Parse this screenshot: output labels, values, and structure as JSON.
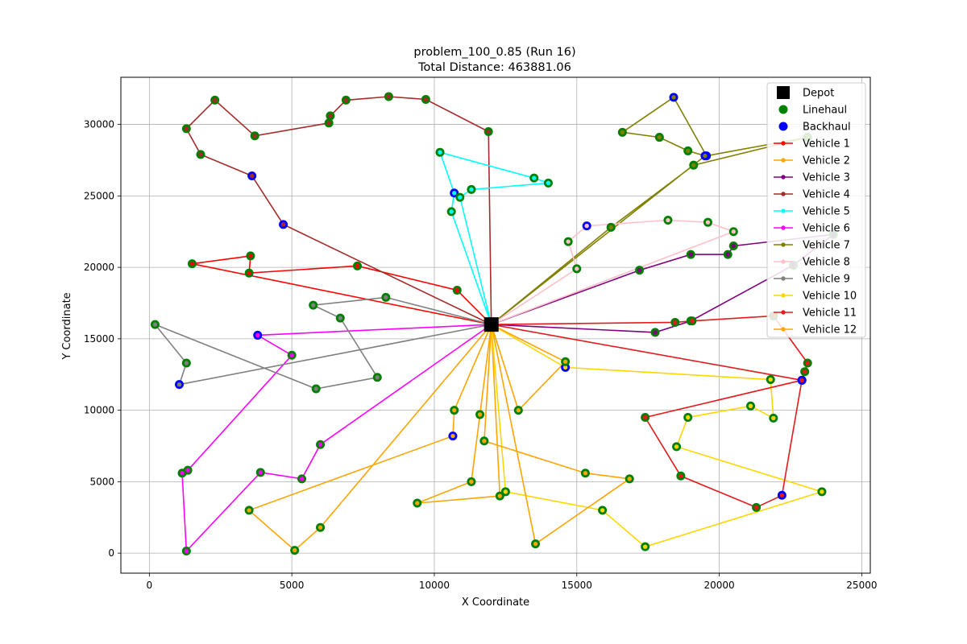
{
  "chart_data": {
    "type": "scatter",
    "title_line1": "problem_100_0.85 (Run 16)",
    "title_line2": "Total Distance: 463881.06",
    "xlabel": "X Coordinate",
    "ylabel": "Y Coordinate",
    "xlim": [
      -1000,
      25300
    ],
    "ylim": [
      -1400,
      33300
    ],
    "xticks": [
      0,
      5000,
      10000,
      15000,
      20000,
      25000
    ],
    "yticks": [
      0,
      5000,
      10000,
      15000,
      20000,
      25000,
      30000
    ],
    "grid": true,
    "legend_placement": "top-right",
    "depot": {
      "label": "Depot",
      "x": 12000,
      "y": 16000,
      "color": "#000000"
    },
    "linehaul_label": "Linehaul",
    "backhaul_label": "Backhaul",
    "linehaul_color": "#008000",
    "backhaul_color": "#0000ff",
    "series": [
      {
        "name": "Vehicle 1",
        "color": "#ff0000",
        "points": [
          [
            12000,
            16000
          ],
          [
            10800,
            18400
          ],
          [
            7300,
            20100
          ],
          [
            3500,
            19600
          ],
          [
            3550,
            20800
          ],
          [
            1500,
            20250
          ],
          [
            12000,
            16000
          ]
        ],
        "types": [
          "D",
          "L",
          "L",
          "L",
          "L",
          "L",
          "D"
        ]
      },
      {
        "name": "Vehicle 2",
        "color": "#ffa500",
        "points": [
          [
            12000,
            16000
          ],
          [
            11600,
            9700
          ],
          [
            11300,
            5000
          ],
          [
            9400,
            3500
          ],
          [
            12300,
            4000
          ],
          [
            12000,
            16000
          ]
        ],
        "types": [
          "D",
          "L",
          "L",
          "L",
          "L",
          "D"
        ]
      },
      {
        "name": "Vehicle 3",
        "color": "#800080",
        "points": [
          [
            12000,
            16000
          ],
          [
            17750,
            15450
          ],
          [
            19000,
            16250
          ],
          [
            22600,
            20150
          ],
          [
            24000,
            22300
          ],
          [
            20500,
            21500
          ],
          [
            20300,
            20900
          ],
          [
            19000,
            20900
          ],
          [
            17200,
            19800
          ],
          [
            12000,
            16000
          ]
        ],
        "types": [
          "D",
          "L",
          "L",
          "L",
          "L",
          "L",
          "L",
          "L",
          "L",
          "D"
        ]
      },
      {
        "name": "Vehicle 4",
        "color": "#a52a2a",
        "points": [
          [
            12000,
            16000
          ],
          [
            4700,
            23000
          ],
          [
            3600,
            26400
          ],
          [
            1800,
            27900
          ],
          [
            1300,
            29700
          ],
          [
            2300,
            31700
          ],
          [
            3700,
            29200
          ],
          [
            6300,
            30100
          ],
          [
            6350,
            30600
          ],
          [
            6900,
            31700
          ],
          [
            8400,
            31950
          ],
          [
            9700,
            31750
          ],
          [
            11900,
            29500
          ],
          [
            12000,
            16000
          ]
        ],
        "types": [
          "D",
          "B",
          "B",
          "L",
          "L",
          "L",
          "L",
          "L",
          "L",
          "L",
          "L",
          "L",
          "L",
          "D"
        ]
      },
      {
        "name": "Vehicle 5",
        "color": "#00ffff",
        "points": [
          [
            12000,
            16000
          ],
          [
            10600,
            23900
          ],
          [
            10700,
            25200
          ],
          [
            10200,
            28050
          ],
          [
            13500,
            26250
          ],
          [
            14000,
            25900
          ],
          [
            11300,
            25450
          ],
          [
            10900,
            24900
          ],
          [
            12000,
            16000
          ]
        ],
        "types": [
          "D",
          "L",
          "B",
          "L",
          "L",
          "L",
          "L",
          "L",
          "D"
        ]
      },
      {
        "name": "Vehicle 6",
        "color": "#ff00ff",
        "points": [
          [
            12000,
            16000
          ],
          [
            3800,
            15250
          ],
          [
            5000,
            13850
          ],
          [
            1350,
            5800
          ],
          [
            1150,
            5600
          ],
          [
            1300,
            150
          ],
          [
            3900,
            5650
          ],
          [
            5350,
            5200
          ],
          [
            6000,
            7600
          ],
          [
            12000,
            16000
          ]
        ],
        "types": [
          "D",
          "B",
          "L",
          "L",
          "L",
          "L",
          "L",
          "L",
          "L",
          "D"
        ]
      },
      {
        "name": "Vehicle 7",
        "color": "#808000",
        "points": [
          [
            12000,
            16000
          ],
          [
            16200,
            22800
          ],
          [
            19100,
            27150
          ],
          [
            23100,
            29100
          ],
          [
            19550,
            27800
          ],
          [
            18400,
            31900
          ],
          [
            16600,
            29450
          ],
          [
            17900,
            29100
          ],
          [
            18900,
            28150
          ],
          [
            19500,
            27800
          ],
          [
            12000,
            16000
          ]
        ],
        "types": [
          "D",
          "L",
          "L",
          "L",
          "B",
          "B",
          "L",
          "L",
          "L",
          "B",
          "D"
        ]
      },
      {
        "name": "Vehicle 8",
        "color": "#ffc0cb",
        "points": [
          [
            12000,
            16000
          ],
          [
            15000,
            19900
          ],
          [
            14700,
            21800
          ],
          [
            15350,
            22900
          ],
          [
            18200,
            23300
          ],
          [
            19600,
            23150
          ],
          [
            20500,
            22500
          ],
          [
            12000,
            16000
          ]
        ],
        "types": [
          "D",
          "L",
          "L",
          "B",
          "L",
          "L",
          "L",
          "D"
        ]
      },
      {
        "name": "Vehicle 9",
        "color": "#808080",
        "points": [
          [
            12000,
            16000
          ],
          [
            8300,
            17900
          ],
          [
            5750,
            17350
          ],
          [
            6700,
            16450
          ],
          [
            8000,
            12300
          ],
          [
            5850,
            11500
          ],
          [
            200,
            16000
          ],
          [
            1300,
            13300
          ],
          [
            1050,
            11800
          ],
          [
            12000,
            16000
          ]
        ],
        "types": [
          "D",
          "L",
          "L",
          "L",
          "L",
          "L",
          "L",
          "L",
          "B",
          "D"
        ]
      },
      {
        "name": "Vehicle 10",
        "color": "#ffd700",
        "points": [
          [
            12000,
            16000
          ],
          [
            12500,
            4300
          ],
          [
            15900,
            3000
          ],
          [
            17400,
            450
          ],
          [
            23600,
            4300
          ],
          [
            18500,
            7450
          ],
          [
            18900,
            9500
          ],
          [
            21100,
            10300
          ],
          [
            21900,
            9450
          ],
          [
            21800,
            12150
          ],
          [
            14600,
            13000
          ],
          [
            12000,
            16000
          ]
        ],
        "types": [
          "D",
          "L",
          "L",
          "L",
          "L",
          "L",
          "L",
          "L",
          "L",
          "L",
          "B",
          "D"
        ]
      },
      {
        "name": "Vehicle 11",
        "color": "#e41a1c",
        "points": [
          [
            12000,
            16000
          ],
          [
            22900,
            12100
          ],
          [
            23000,
            12700
          ],
          [
            23100,
            13300
          ],
          [
            21900,
            16600
          ],
          [
            19050,
            16250
          ],
          [
            18450,
            16150
          ],
          [
            12000,
            16000
          ],
          [
            22900,
            12100
          ],
          [
            17400,
            9500
          ],
          [
            18650,
            5400
          ],
          [
            21300,
            3200
          ],
          [
            22200,
            4050
          ],
          [
            22900,
            12100
          ]
        ],
        "types": [
          "D",
          "B",
          "L",
          "L",
          "L",
          "L",
          "L",
          "D",
          "B",
          "L",
          "L",
          "L",
          "B",
          "B"
        ]
      },
      {
        "name": "Vehicle 12",
        "color": "#ffa500",
        "points": [
          [
            12000,
            16000
          ],
          [
            12950,
            10000
          ],
          [
            14600,
            13400
          ],
          [
            12000,
            16000
          ],
          [
            11750,
            7850
          ],
          [
            15300,
            5600
          ],
          [
            16850,
            5200
          ],
          [
            13550,
            650
          ],
          [
            12000,
            16000
          ],
          [
            10700,
            10000
          ],
          [
            10650,
            8200
          ],
          [
            3500,
            3000
          ],
          [
            5100,
            200
          ],
          [
            6000,
            1800
          ],
          [
            12000,
            16000
          ]
        ],
        "types": [
          "D",
          "L",
          "L",
          "D",
          "L",
          "L",
          "L",
          "L",
          "D",
          "L",
          "B",
          "L",
          "L",
          "L",
          "D"
        ]
      }
    ]
  }
}
